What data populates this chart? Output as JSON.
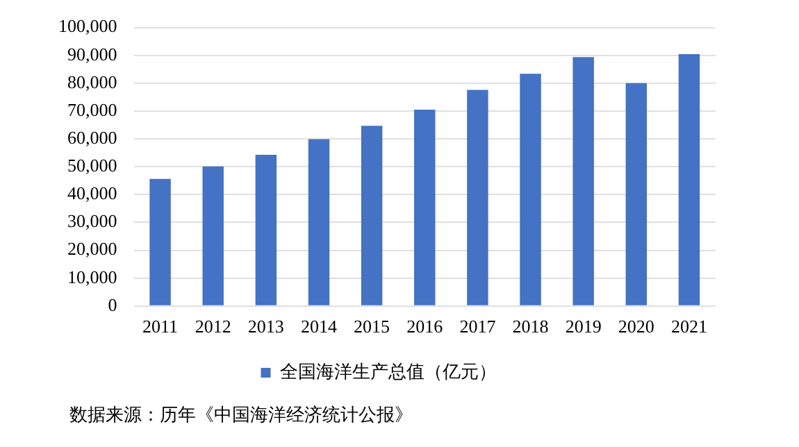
{
  "chart_data": {
    "type": "bar",
    "categories": [
      "2011",
      "2012",
      "2013",
      "2014",
      "2015",
      "2016",
      "2017",
      "2018",
      "2019",
      "2020",
      "2021"
    ],
    "series": [
      {
        "name": "全国海洋生产总值（亿元）",
        "color": "#4472c4",
        "values": [
          45600,
          50100,
          54300,
          59900,
          64700,
          70500,
          77600,
          83400,
          89400,
          80000,
          90400
        ]
      }
    ],
    "ylim": [
      0,
      100000
    ],
    "yticks": [
      {
        "value": 0,
        "label": "0"
      },
      {
        "value": 10000,
        "label": "10,000"
      },
      {
        "value": 20000,
        "label": "20,000"
      },
      {
        "value": 30000,
        "label": "30,000"
      },
      {
        "value": 40000,
        "label": "40,000"
      },
      {
        "value": 50000,
        "label": "50,000"
      },
      {
        "value": 60000,
        "label": "60,000"
      },
      {
        "value": 70000,
        "label": "70,000"
      },
      {
        "value": 80000,
        "label": "80,000"
      },
      {
        "value": 90000,
        "label": "90,000"
      },
      {
        "value": 100000,
        "label": "100,000"
      }
    ],
    "grid": "y",
    "legend": "bottom",
    "annotations": [
      "数据来源：历年《中国海洋经济统计公报》"
    ]
  }
}
